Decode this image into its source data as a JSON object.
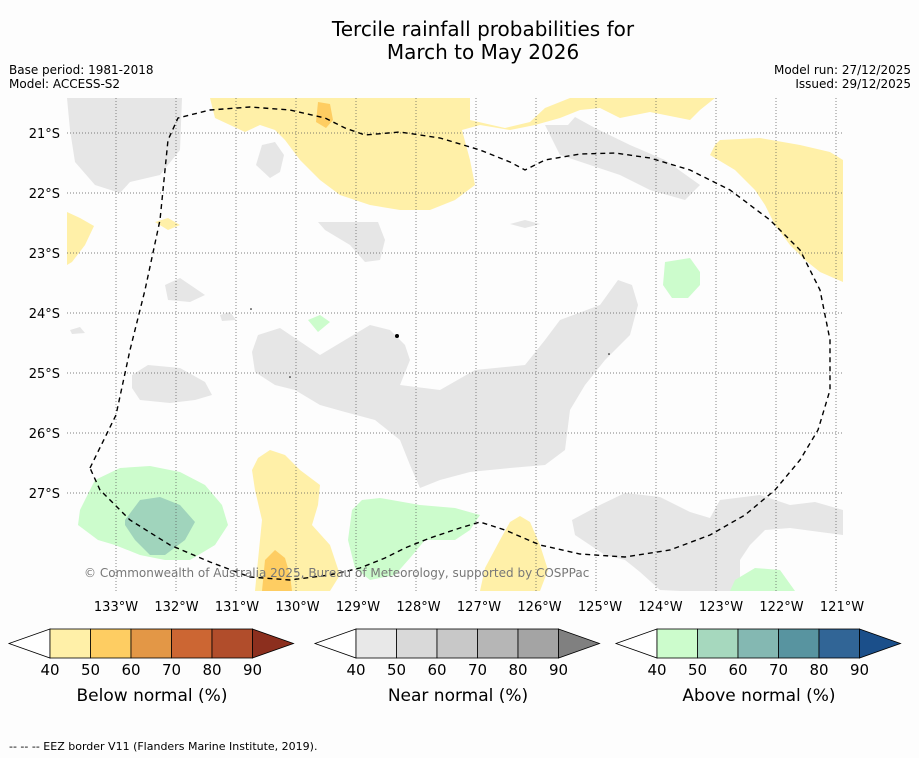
{
  "title_line1": "Tercile rainfall probabilities for",
  "title_line2": "March to May 2026",
  "base_period": "Base period: 1981-2018",
  "model": "Model: ACCESS-S2",
  "model_run": "Model run: 27/12/2025",
  "issued": "Issued: 29/12/2025",
  "latitudes": [
    "21°S",
    "22°S",
    "23°S",
    "24°S",
    "25°S",
    "26°S",
    "27°S"
  ],
  "longitudes": [
    "133°W",
    "132°W",
    "131°W",
    "130°W",
    "129°W",
    "128°W",
    "127°W",
    "126°W",
    "125°W",
    "124°W",
    "123°W",
    "122°W",
    "121°W"
  ],
  "attribution": "© Commonwealth of Australia 2025, Bureau of Meteorology, supported by COSPPac",
  "footer": "--  --  -- EEZ border V11 (Flanders Marine Institute, 2019).",
  "legends": [
    {
      "label": "Below normal (%)",
      "colors": [
        "#fff0a8",
        "#fecd62",
        "#e39746",
        "#cc6633",
        "#b14d2b",
        "#8c2f1e"
      ],
      "ticks": [
        "40",
        "50",
        "60",
        "70",
        "80",
        "90"
      ]
    },
    {
      "label": "Near normal (%)",
      "colors": [
        "#e8e8e8",
        "#d9d9d9",
        "#c8c8c8",
        "#b6b6b6",
        "#a4a4a4",
        "#808080"
      ],
      "ticks": [
        "40",
        "50",
        "60",
        "70",
        "80",
        "90"
      ]
    },
    {
      "label": "Above normal (%)",
      "colors": [
        "#ccfccc",
        "#a6d8be",
        "#84b8b2",
        "#5894a0",
        "#316596",
        "#1b4f8a"
      ],
      "ticks": [
        "40",
        "50",
        "60",
        "70",
        "80",
        "90"
      ]
    }
  ],
  "colors": {
    "below": "#fff0a8",
    "below50": "#fecd62",
    "near": "#e6e6e6",
    "above": "#ccfccc",
    "above50": "#a0d4bc"
  }
}
